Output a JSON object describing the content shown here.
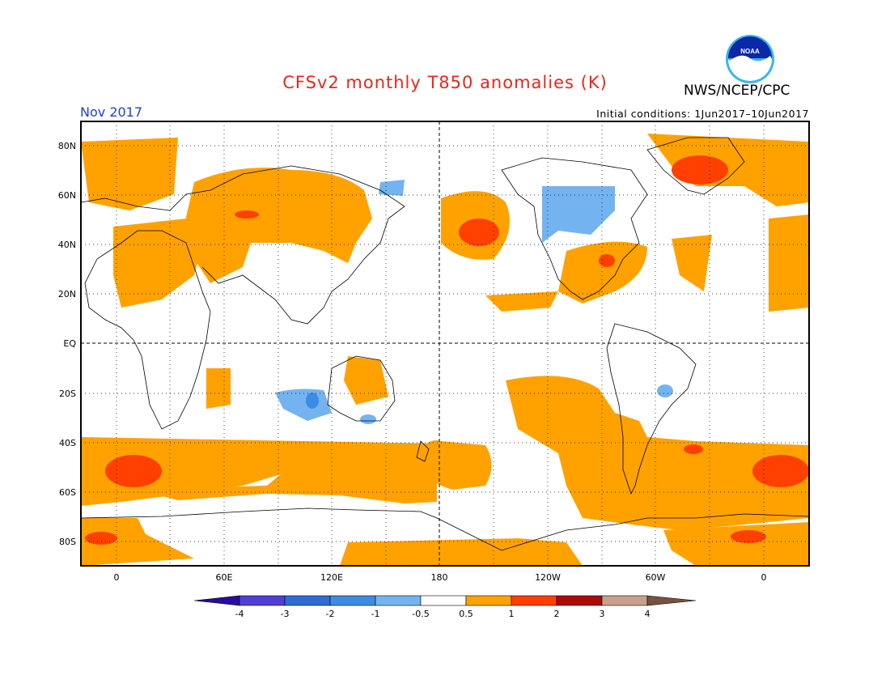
{
  "header": {
    "title": "CFSv2 monthly T850 anomalies (K)",
    "month": "Nov 2017",
    "agency": "NWS/NCEP/CPC",
    "initial_conditions": "Initial conditions: 1Jun2017–10Jun2017",
    "logo_text": "NOAA"
  },
  "map": {
    "lat_labels": [
      "80N",
      "60N",
      "40N",
      "20N",
      "EQ",
      "20S",
      "40S",
      "60S",
      "80S"
    ],
    "lon_labels": [
      "0",
      "60E",
      "120E",
      "180",
      "120W",
      "60W",
      "0"
    ],
    "colors": {
      "pos_0_5_1": "#ffa200",
      "pos_1_2": "#ff4000",
      "neg_0_5_1": "#73b4f0",
      "neg_1_2": "#3c8ce6"
    }
  },
  "colorbar": {
    "ticks": [
      "-4",
      "-3",
      "-2",
      "-1",
      "-0.5",
      "0.5",
      "1",
      "2",
      "3",
      "4"
    ],
    "colors": [
      "#2a0aa0",
      "#4f3fd6",
      "#2f6bd6",
      "#3c8ce6",
      "#73b4f0",
      "#ffffff",
      "#ffa200",
      "#ff4000",
      "#aa0a0a",
      "#c8a08c",
      "#7a5040"
    ]
  }
}
